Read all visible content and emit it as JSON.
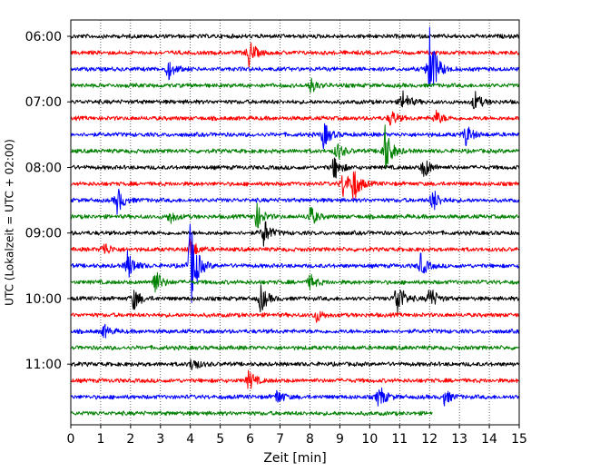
{
  "chart_data": {
    "type": "line",
    "title": "",
    "xlabel": "Zeit  [min]",
    "ylabel": "UTC (Lokalzeit = UTC + 02:00)",
    "xlim": [
      0,
      15
    ],
    "x_ticks": [
      "0",
      "1",
      "2",
      "3",
      "4",
      "5",
      "6",
      "7",
      "8",
      "9",
      "10",
      "11",
      "12",
      "13",
      "14",
      "15"
    ],
    "y_ticks": [
      "06:00",
      "07:00",
      "08:00",
      "09:00",
      "10:00",
      "11:00"
    ],
    "rows_per_hour": 4,
    "colors": [
      "#000000",
      "#ff0000",
      "#0000ff",
      "#008000"
    ],
    "grid": "vertical-dotted",
    "rows": [
      {
        "time": "06:00",
        "color": "#000000",
        "end": 15,
        "events": []
      },
      {
        "time": "06:15",
        "color": "#ff0000",
        "end": 15,
        "events": [
          {
            "t": 5.95,
            "amp": 1.4
          }
        ]
      },
      {
        "time": "06:30",
        "color": "#0000ff",
        "end": 15,
        "events": [
          {
            "t": 3.25,
            "amp": 1.1
          },
          {
            "t": 12.0,
            "amp": 4.6
          }
        ]
      },
      {
        "time": "06:45",
        "color": "#008000",
        "end": 15,
        "events": [
          {
            "t": 8.0,
            "amp": 0.8
          }
        ]
      },
      {
        "time": "07:00",
        "color": "#000000",
        "end": 15,
        "events": [
          {
            "t": 11.1,
            "amp": 1.2
          },
          {
            "t": 13.5,
            "amp": 1.1
          }
        ]
      },
      {
        "time": "07:15",
        "color": "#ff0000",
        "end": 15,
        "events": [
          {
            "t": 10.7,
            "amp": 0.9
          },
          {
            "t": 12.2,
            "amp": 0.8
          }
        ]
      },
      {
        "time": "07:30",
        "color": "#0000ff",
        "end": 15,
        "events": [
          {
            "t": 8.45,
            "amp": 1.4
          },
          {
            "t": 13.2,
            "amp": 1.2
          }
        ]
      },
      {
        "time": "07:45",
        "color": "#008000",
        "end": 15,
        "events": [
          {
            "t": 8.9,
            "amp": 1.0
          },
          {
            "t": 10.5,
            "amp": 2.8
          }
        ]
      },
      {
        "time": "08:00",
        "color": "#000000",
        "end": 15,
        "events": [
          {
            "t": 8.8,
            "amp": 1.3
          },
          {
            "t": 11.8,
            "amp": 1.2
          }
        ]
      },
      {
        "time": "08:15",
        "color": "#ff0000",
        "end": 15,
        "events": [
          {
            "t": 9.1,
            "amp": 1.4
          },
          {
            "t": 9.45,
            "amp": 1.8
          }
        ]
      },
      {
        "time": "08:30",
        "color": "#0000ff",
        "end": 15,
        "events": [
          {
            "t": 1.55,
            "amp": 1.4
          },
          {
            "t": 12.1,
            "amp": 1.3
          }
        ]
      },
      {
        "time": "08:45",
        "color": "#008000",
        "end": 15,
        "events": [
          {
            "t": 6.2,
            "amp": 1.4
          },
          {
            "t": 8.0,
            "amp": 1.1
          },
          {
            "t": 3.3,
            "amp": 0.7
          }
        ]
      },
      {
        "time": "09:00",
        "color": "#000000",
        "end": 15,
        "events": [
          {
            "t": 6.45,
            "amp": 1.5
          }
        ]
      },
      {
        "time": "09:15",
        "color": "#ff0000",
        "end": 15,
        "events": [
          {
            "t": 4.0,
            "amp": 1.2
          },
          {
            "t": 1.1,
            "amp": 0.8
          }
        ]
      },
      {
        "time": "09:30",
        "color": "#0000ff",
        "end": 15,
        "events": [
          {
            "t": 1.9,
            "amp": 1.6
          },
          {
            "t": 4.0,
            "amp": 5.2
          },
          {
            "t": 11.7,
            "amp": 1.2
          }
        ]
      },
      {
        "time": "09:45",
        "color": "#008000",
        "end": 15,
        "events": [
          {
            "t": 2.8,
            "amp": 1.5
          },
          {
            "t": 8.0,
            "amp": 0.8
          }
        ]
      },
      {
        "time": "10:00",
        "color": "#000000",
        "end": 15,
        "events": [
          {
            "t": 2.1,
            "amp": 1.2
          },
          {
            "t": 6.35,
            "amp": 1.5
          },
          {
            "t": 10.9,
            "amp": 2.2
          },
          {
            "t": 12.0,
            "amp": 1.4
          }
        ]
      },
      {
        "time": "10:15",
        "color": "#ff0000",
        "end": 15,
        "events": [
          {
            "t": 8.2,
            "amp": 0.7
          }
        ]
      },
      {
        "time": "10:30",
        "color": "#0000ff",
        "end": 15,
        "events": [
          {
            "t": 1.1,
            "amp": 0.7
          }
        ]
      },
      {
        "time": "10:45",
        "color": "#008000",
        "end": 15,
        "events": []
      },
      {
        "time": "11:00",
        "color": "#000000",
        "end": 15,
        "events": [
          {
            "t": 4.05,
            "amp": 0.8
          }
        ]
      },
      {
        "time": "11:15",
        "color": "#ff0000",
        "end": 15,
        "events": [
          {
            "t": 5.95,
            "amp": 1.1
          }
        ]
      },
      {
        "time": "11:30",
        "color": "#0000ff",
        "end": 15,
        "events": [
          {
            "t": 6.9,
            "amp": 0.8
          },
          {
            "t": 10.3,
            "amp": 1.3
          },
          {
            "t": 12.5,
            "amp": 0.8
          }
        ]
      },
      {
        "time": "11:45",
        "color": "#008000",
        "end": 12.1,
        "events": []
      }
    ]
  }
}
